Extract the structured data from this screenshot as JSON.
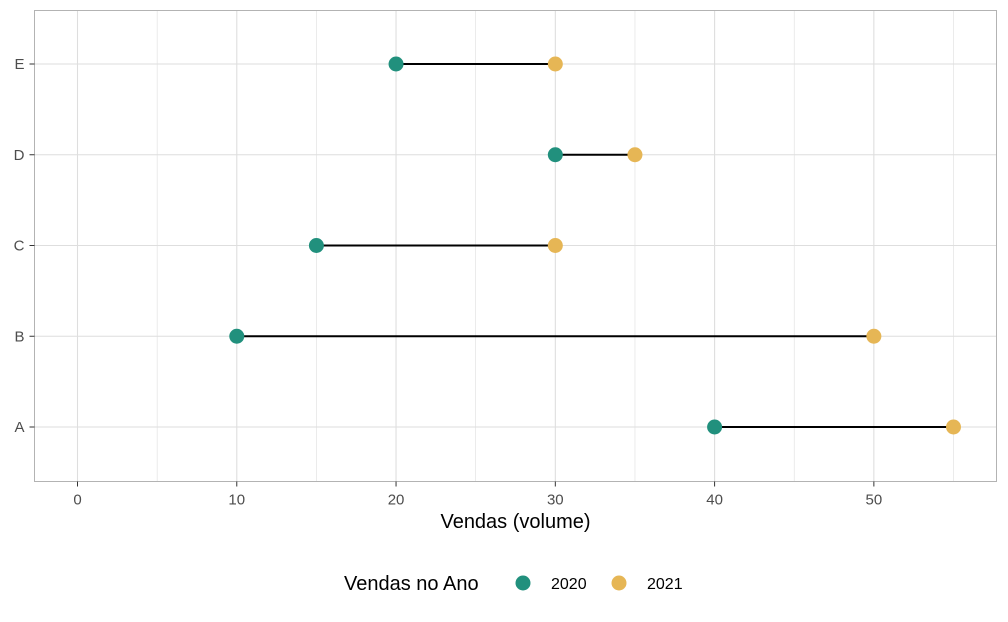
{
  "chart_data": {
    "type": "dumbbell",
    "categories": [
      "A",
      "B",
      "C",
      "D",
      "E"
    ],
    "series": [
      {
        "name": "2020",
        "color": "#21907D",
        "values": [
          40,
          10,
          15,
          30,
          20
        ]
      },
      {
        "name": "2021",
        "color": "#E6B655",
        "values": [
          55,
          50,
          30,
          35,
          30
        ]
      }
    ],
    "xlabel": "Vendas (volume)",
    "ylabel": "",
    "xlim": [
      -2.7,
      57.7
    ],
    "x_ticks": [
      0,
      10,
      20,
      30,
      40,
      50
    ],
    "x_minor_ticks": [
      5,
      15,
      25,
      35,
      45,
      55
    ],
    "grid": true,
    "legend": {
      "title": "Vendas no Ano",
      "placement": "bottom"
    },
    "segment_color": "#000000",
    "grid_color": "#dedede",
    "border_color": "#b3b3b3"
  }
}
